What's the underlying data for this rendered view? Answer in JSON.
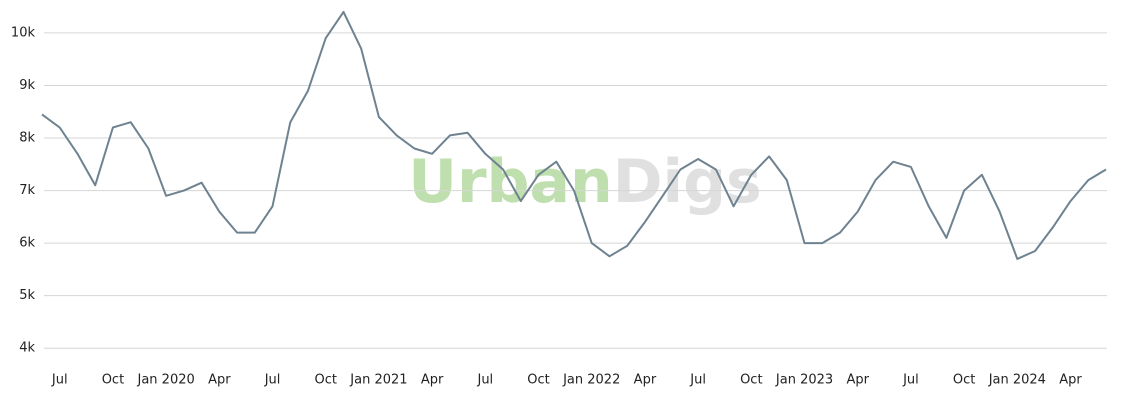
{
  "chart_data": {
    "type": "line",
    "watermark": [
      "Urban",
      "Digs"
    ],
    "x": [
      "2019-06",
      "2019-07",
      "2019-08",
      "2019-09",
      "2019-10",
      "2019-11",
      "2019-12",
      "2020-01",
      "2020-02",
      "2020-03",
      "2020-04",
      "2020-05",
      "2020-06",
      "2020-07",
      "2020-08",
      "2020-09",
      "2020-10",
      "2020-11",
      "2020-12",
      "2021-01",
      "2021-02",
      "2021-03",
      "2021-04",
      "2021-05",
      "2021-06",
      "2021-07",
      "2021-08",
      "2021-09",
      "2021-10",
      "2021-11",
      "2021-12",
      "2022-01",
      "2022-02",
      "2022-03",
      "2022-04",
      "2022-05",
      "2022-06",
      "2022-07",
      "2022-08",
      "2022-09",
      "2022-10",
      "2022-11",
      "2022-12",
      "2023-01",
      "2023-02",
      "2023-03",
      "2023-04",
      "2023-05",
      "2023-06",
      "2023-07",
      "2023-08",
      "2023-09",
      "2023-10",
      "2023-11",
      "2023-12",
      "2024-01",
      "2024-02",
      "2024-03",
      "2024-04",
      "2024-05",
      "2024-06"
    ],
    "series": [
      {
        "color": "#6e8290",
        "values": [
          8450,
          8200,
          7700,
          7100,
          8200,
          8300,
          7800,
          6900,
          7000,
          7150,
          6600,
          6200,
          6200,
          6700,
          8300,
          8900,
          9900,
          10400,
          9700,
          8400,
          8050,
          7800,
          7700,
          8050,
          8100,
          7700,
          7400,
          6800,
          7300,
          7550,
          7000,
          6000,
          5750,
          5950,
          6400,
          6900,
          7400,
          7600,
          7400,
          6700,
          7300,
          7650,
          7200,
          6000,
          6000,
          6200,
          6600,
          7200,
          7550,
          7450,
          6700,
          6100,
          7000,
          7300,
          6600,
          5700,
          5850,
          6300,
          6800,
          7200,
          7400
        ]
      }
    ],
    "xlim": [
      "2019-06",
      "2024-06"
    ],
    "xticks": [
      {
        "value": "2019-07",
        "label": "Jul"
      },
      {
        "value": "2019-10",
        "label": "Oct"
      },
      {
        "value": "2020-01",
        "label": "Jan 2020"
      },
      {
        "value": "2020-04",
        "label": "Apr"
      },
      {
        "value": "2020-07",
        "label": "Jul"
      },
      {
        "value": "2020-10",
        "label": "Oct"
      },
      {
        "value": "2021-01",
        "label": "Jan 2021"
      },
      {
        "value": "2021-04",
        "label": "Apr"
      },
      {
        "value": "2021-07",
        "label": "Jul"
      },
      {
        "value": "2021-10",
        "label": "Oct"
      },
      {
        "value": "2022-01",
        "label": "Jan 2022"
      },
      {
        "value": "2022-04",
        "label": "Apr"
      },
      {
        "value": "2022-07",
        "label": "Jul"
      },
      {
        "value": "2022-10",
        "label": "Oct"
      },
      {
        "value": "2023-01",
        "label": "Jan 2023"
      },
      {
        "value": "2023-04",
        "label": "Apr"
      },
      {
        "value": "2023-07",
        "label": "Jul"
      },
      {
        "value": "2023-10",
        "label": "Oct"
      },
      {
        "value": "2024-01",
        "label": "Jan 2024"
      },
      {
        "value": "2024-04",
        "label": "Apr"
      }
    ],
    "ylim": [
      3700,
      10550
    ],
    "yticks": [
      {
        "value": 4000,
        "label": "4k"
      },
      {
        "value": 5000,
        "label": "5k"
      },
      {
        "value": 6000,
        "label": "6k"
      },
      {
        "value": 7000,
        "label": "7k"
      },
      {
        "value": 8000,
        "label": "8k"
      },
      {
        "value": 9000,
        "label": "9k"
      },
      {
        "value": 10000,
        "label": "10k"
      }
    ],
    "grid": true
  }
}
